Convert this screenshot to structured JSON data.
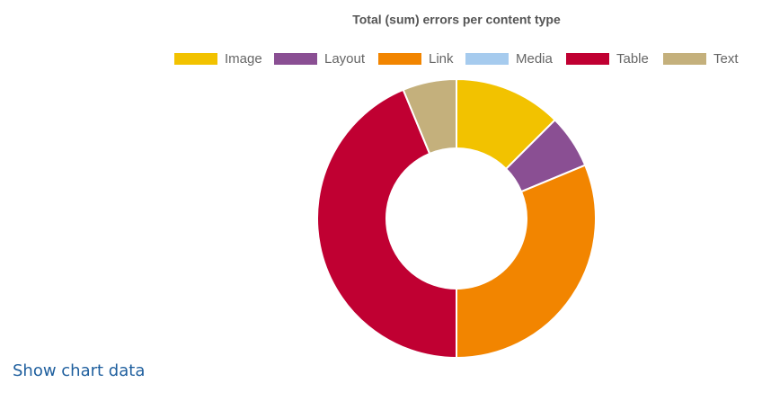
{
  "chart_data": {
    "type": "doughnut",
    "title": "Total (sum) errors per content type",
    "categories": [
      "Image",
      "Layout",
      "Link",
      "Media",
      "Table",
      "Text"
    ],
    "values": [
      2,
      1,
      5,
      0,
      7,
      1
    ],
    "colors": [
      "#f2c200",
      "#8a4f93",
      "#f28500",
      "#a6cbee",
      "#c00032",
      "#c4b07c"
    ]
  },
  "link": "Show chart data"
}
